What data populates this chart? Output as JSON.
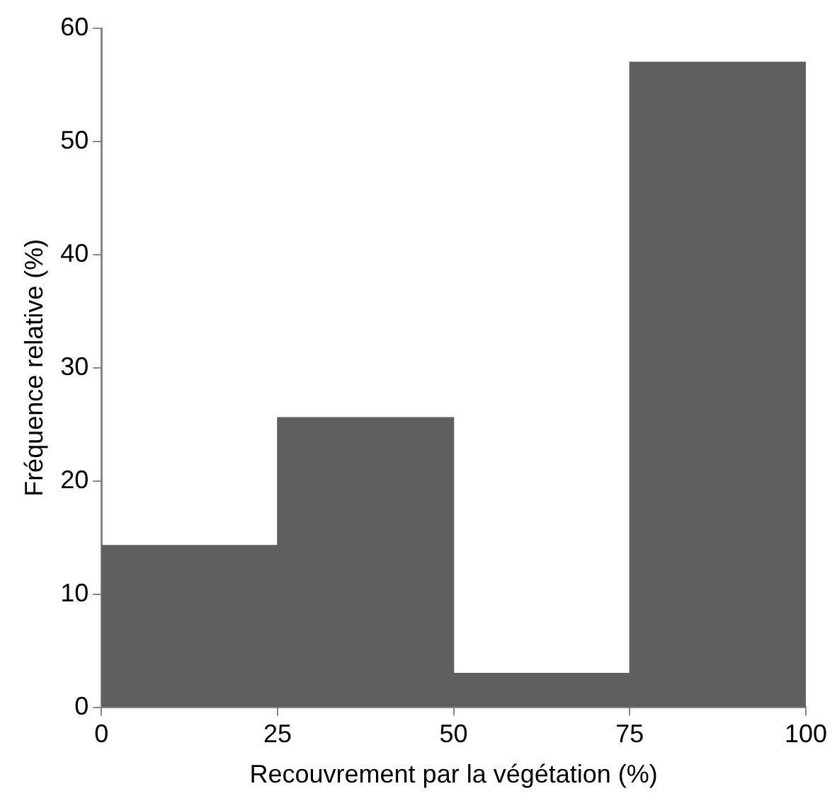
{
  "chart_data": {
    "type": "histogram",
    "xlabel": "Recouvrement par la végétation (%)",
    "ylabel": "Fréquence relative (%)",
    "bins": [
      0,
      25,
      50,
      75,
      100
    ],
    "values": [
      14.3,
      25.6,
      3.0,
      57.0
    ],
    "color": "#5f5f5f",
    "xlim": [
      0,
      100
    ],
    "xticks": [
      0,
      25,
      50,
      75,
      100
    ],
    "ylim": [
      0,
      60
    ],
    "yticks": [
      0,
      10,
      20,
      30,
      40,
      50,
      60
    ],
    "grid": false,
    "legend": false
  }
}
